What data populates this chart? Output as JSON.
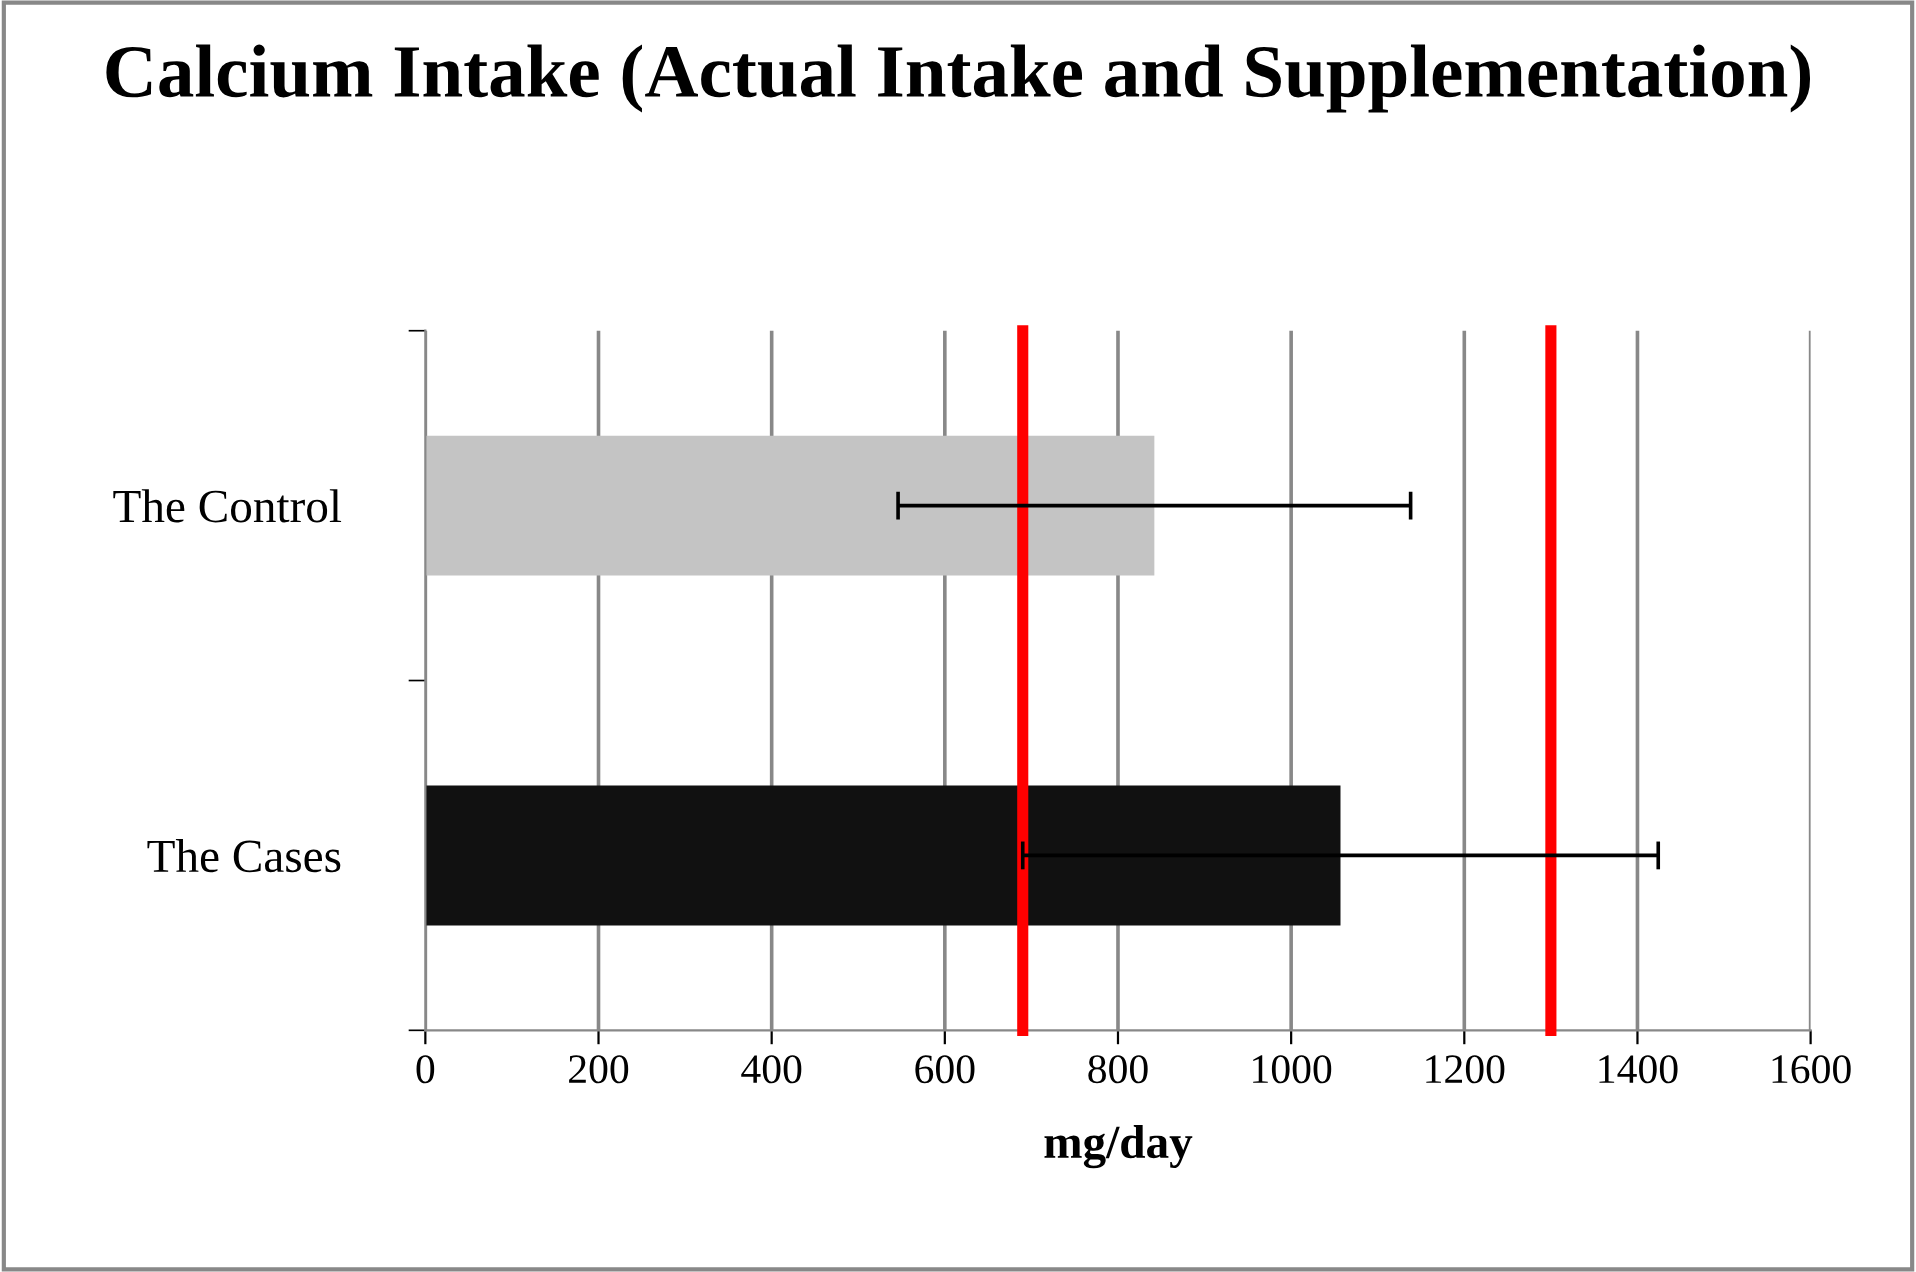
{
  "chart_data": {
    "type": "bar",
    "orientation": "horizontal",
    "title": "Calcium Intake (Actual Intake and Supplementation)",
    "xlabel": "mg/day",
    "categories": [
      "The Control",
      "The Cases"
    ],
    "values": [
      842,
      1057
    ],
    "colors": [
      "#c4c4c4",
      "#111111"
    ],
    "errors": [
      296,
      367
    ],
    "xlim": [
      0,
      1600
    ],
    "xticks": [
      0,
      200,
      400,
      600,
      800,
      1000,
      1200,
      1400,
      1600
    ],
    "grid": "x",
    "ref_lines": [
      {
        "axis": "x",
        "value": 690,
        "label": null,
        "color": "#ff0000",
        "line_style": "solid"
      },
      {
        "axis": "x",
        "value": 1300,
        "label": null,
        "color": "#ff0000",
        "line_style": "solid"
      }
    ]
  }
}
